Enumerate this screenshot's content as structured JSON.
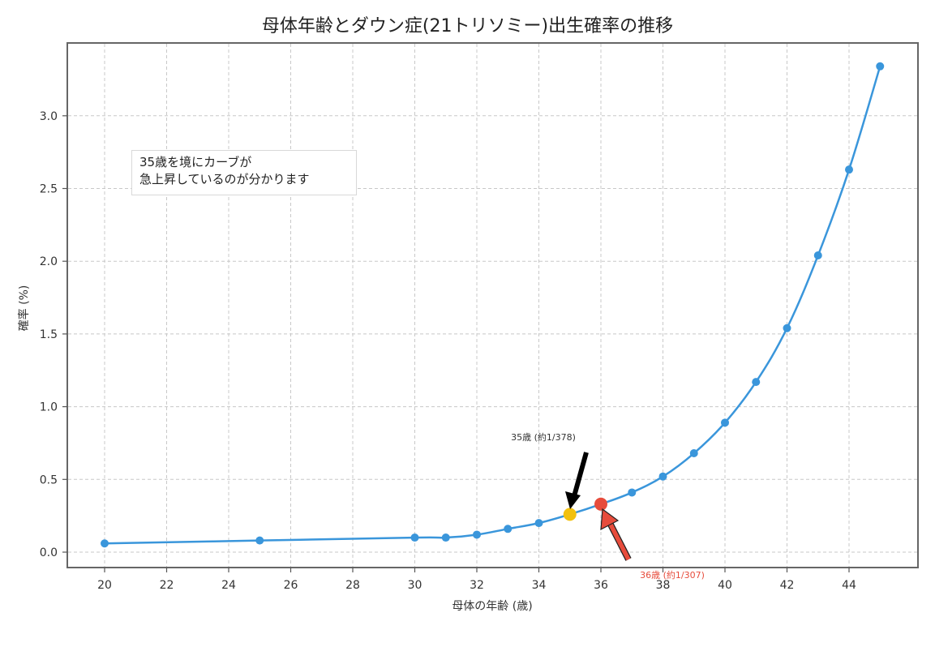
{
  "chart_data": {
    "type": "line",
    "title": "母体年齢とダウン症(21トリソミー)出生確率の推移",
    "xlabel": "母体の年齢 (歳)",
    "ylabel": "確率 (%)",
    "xlim": [
      18.7,
      46.3
    ],
    "ylim": [
      -0.1,
      3.5
    ],
    "grid": true,
    "x_ticks": [
      20,
      22,
      24,
      26,
      28,
      30,
      32,
      34,
      36,
      38,
      40,
      42,
      44
    ],
    "y_ticks": [
      0.0,
      0.5,
      1.0,
      1.5,
      2.0,
      2.5,
      3.0
    ],
    "x_tick_labels": [
      "20",
      "22",
      "24",
      "26",
      "28",
      "30",
      "32",
      "34",
      "36",
      "38",
      "40",
      "42",
      "44"
    ],
    "y_tick_labels": [
      "0.0",
      "0.5",
      "1.0",
      "1.5",
      "2.0",
      "2.5",
      "3.0"
    ],
    "series": [
      {
        "name": "確率",
        "color": "#3a96db",
        "x": [
          20,
          25,
          30,
          31,
          32,
          33,
          34,
          35,
          36,
          37,
          38,
          39,
          40,
          41,
          42,
          43,
          44,
          45
        ],
        "values": [
          0.06,
          0.08,
          0.1,
          0.1,
          0.12,
          0.16,
          0.2,
          0.26,
          0.33,
          0.41,
          0.52,
          0.68,
          0.89,
          1.17,
          1.54,
          2.04,
          2.63,
          3.34
        ]
      }
    ],
    "highlights": [
      {
        "x": 35,
        "y": 0.26,
        "color": "#f2c10f",
        "label": "35歳 (約1/378)",
        "label_color": "#333333",
        "arrow_color": "#000000"
      },
      {
        "x": 36,
        "y": 0.33,
        "color": "#e74c3c",
        "label": "36歳 (約1/307)",
        "label_color": "#e74c3c",
        "arrow_color": "#e74c3c"
      }
    ],
    "annotations": [
      {
        "text": "35歳を境にカーブが\n急上昇しているのが分かります",
        "position": "upper-left box"
      }
    ]
  },
  "note": {
    "line1": "35歳を境にカーブが",
    "line2": "急上昇しているのが分かります"
  }
}
